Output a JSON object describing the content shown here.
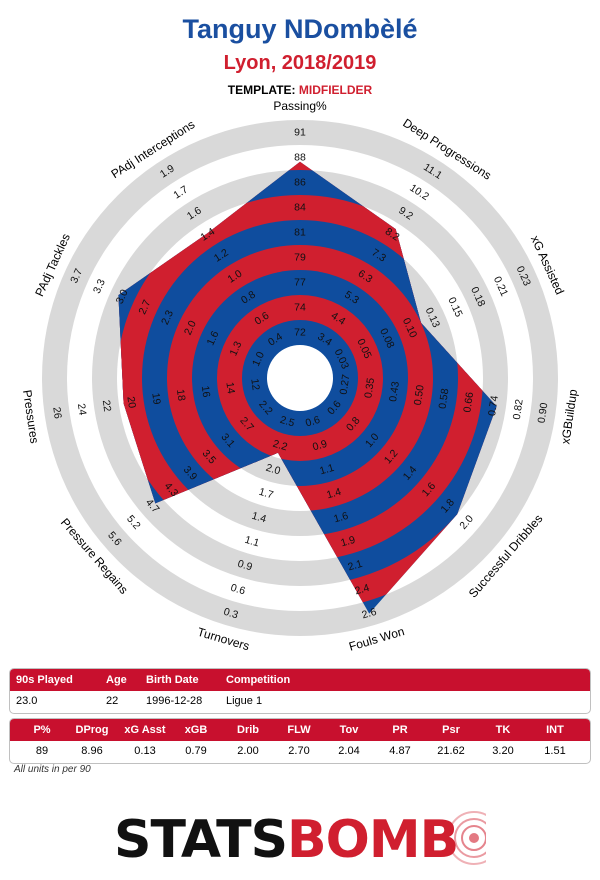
{
  "header": {
    "player_name": "Tanguy NDombèlé",
    "club_season": "Lyon, 2018/2019",
    "template_label": "TEMPLATE:",
    "template_value": "MIDFIELDER"
  },
  "chart_data": {
    "type": "radar",
    "title": "Tanguy NDombèlé",
    "subtitle": "Lyon, 2018/2019",
    "colors": {
      "red": "#d01f2f",
      "blue": "#0f4d9e",
      "ring_grey": "#d9d9d9"
    },
    "axes": [
      {
        "label": "Passing%",
        "ticks": [
          "72",
          "74",
          "77",
          "79",
          "81",
          "84",
          "86",
          "88",
          "91"
        ],
        "value": 89
      },
      {
        "label": "Deep Progressions",
        "ticks": [
          "3.4",
          "4.4",
          "5.3",
          "6.3",
          "7.3",
          "8.2",
          "9.2",
          "10.2",
          "11.1"
        ],
        "value": 8.96
      },
      {
        "label": "xG Assisted",
        "ticks": [
          "0.03",
          "0.05",
          "0.08",
          "0.10",
          "0.13",
          "0.15",
          "0.18",
          "0.21",
          "0.23"
        ],
        "value": 0.13
      },
      {
        "label": "xGBuildup",
        "ticks": [
          "0.27",
          "0.35",
          "0.43",
          "0.50",
          "0.58",
          "0.66",
          "0.74",
          "0.82",
          "0.90"
        ],
        "value": 0.79
      },
      {
        "label": "Successful Dribbles",
        "ticks": [
          "0.6",
          "0.8",
          "1.0",
          "1.2",
          "1.4",
          "1.6",
          "1.8",
          "2.0",
          ""
        ],
        "value": 2.0
      },
      {
        "label": "Fouls Won",
        "ticks": [
          "0.6",
          "0.9",
          "1.1",
          "1.4",
          "1.6",
          "1.9",
          "2.1",
          "2.4",
          "2.6"
        ],
        "value": 2.7
      },
      {
        "label": "Turnovers",
        "ticks": [
          "2.5",
          "2.2",
          "2.0",
          "1.7",
          "1.4",
          "1.1",
          "0.9",
          "0.6",
          "0.3"
        ],
        "value": 2.04
      },
      {
        "label": "Pressure Regains",
        "ticks": [
          "2.2",
          "2.7",
          "3.1",
          "3.5",
          "3.9",
          "4.3",
          "4.7",
          "5.2",
          "5.6"
        ],
        "value": 4.87
      },
      {
        "label": "Pressures",
        "ticks": [
          "12",
          "14",
          "16",
          "18",
          "19",
          "20",
          "22",
          "24",
          "26"
        ],
        "value": 21.62
      },
      {
        "label": "PAdj Tackles",
        "ticks": [
          "1.0",
          "1.3",
          "1.6",
          "2.0",
          "2.3",
          "2.7",
          "3.0",
          "3.3",
          "3.7"
        ],
        "value": 3.2
      },
      {
        "label": "PAdj Interceptions",
        "ticks": [
          "0.4",
          "0.6",
          "0.8",
          "1.0",
          "1.2",
          "1.4",
          "1.6",
          "1.7",
          "1.9"
        ],
        "value": 1.51
      }
    ]
  },
  "table1": {
    "headers": [
      "90s Played",
      "Age",
      "Birth Date",
      "Competition"
    ],
    "values": [
      "23.0",
      "22",
      "1996-12-28",
      "Ligue 1"
    ]
  },
  "table2": {
    "headers": [
      "P%",
      "DProg",
      "xG Asst",
      "xGB",
      "Drib",
      "FLW",
      "Tov",
      "PR",
      "Psr",
      "TK",
      "INT"
    ],
    "values": [
      "89",
      "8.96",
      "0.13",
      "0.79",
      "2.00",
      "2.70",
      "2.04",
      "4.87",
      "21.62",
      "3.20",
      "1.51"
    ]
  },
  "note": "All units in per 90",
  "logo": {
    "part1": "STATS",
    "part2": "BOMB"
  }
}
